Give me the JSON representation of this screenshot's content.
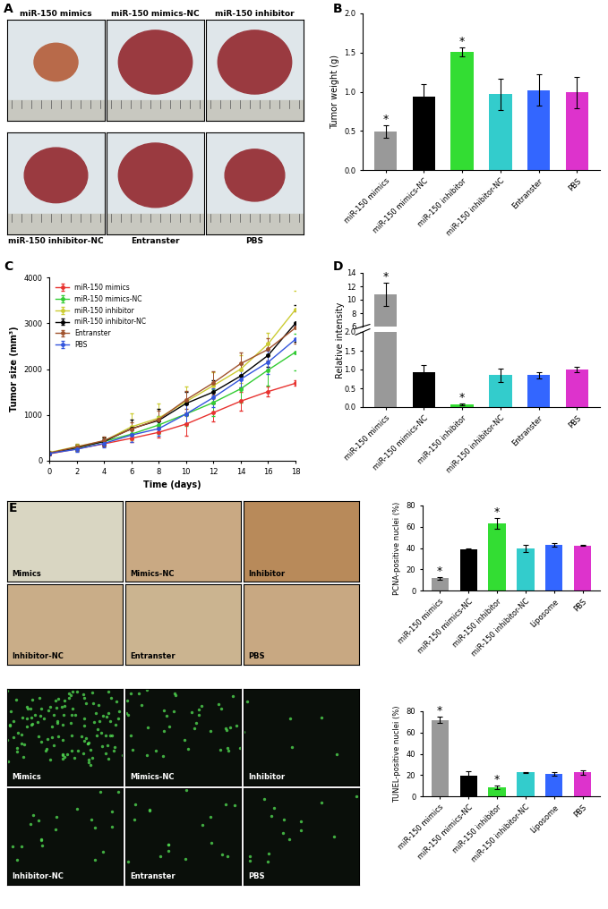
{
  "photos_A": {
    "panel": "A",
    "captions": [
      "miR-150 mimics",
      "miR-150 mimics-NC",
      "miR-150 inhibitor",
      "miR-150 inhibitor-NC",
      "Entranster",
      "PBS"
    ]
  },
  "images_E": {
    "panel": "E",
    "ihc_captions": [
      "Mimics",
      "Mimics-NC",
      "Inhibitor",
      "Inhibitor-NC",
      "Entranster",
      "PBS"
    ],
    "tunel_captions": [
      "Mimics",
      "Mimics-NC",
      "Inhibitor",
      "Inhibitor-NC",
      "Entranster",
      "PBS"
    ]
  },
  "chart_data": [
    {
      "panel": "B",
      "type": "bar",
      "y_label": "Tumor weight (g)",
      "categories": [
        "miR-150 mimics",
        "miR-150 mimics-NC",
        "miR-150 inhibitor",
        "miR-150 inhibitor-NC",
        "Entranster",
        "PBS"
      ],
      "values": [
        0.49,
        0.94,
        1.51,
        0.97,
        1.02,
        0.99
      ],
      "errors": [
        0.08,
        0.16,
        0.06,
        0.2,
        0.2,
        0.2
      ],
      "annotations": [
        "*",
        null,
        "*",
        null,
        null,
        null
      ],
      "colors": [
        "#999999",
        "#000000",
        "#33dd33",
        "#33cccc",
        "#3366ff",
        "#dd33cc"
      ],
      "ylim": [
        0,
        2.0
      ],
      "yticks": [
        {
          "value": 0,
          "label": "0.0"
        },
        {
          "value": 0.5,
          "label": "0.5"
        },
        {
          "value": 1.0,
          "label": "1.0"
        },
        {
          "value": 1.5,
          "label": "1.5"
        },
        {
          "value": 2.0,
          "label": "2.0"
        }
      ]
    },
    {
      "panel": "C",
      "type": "line",
      "x_label": "Time (days)",
      "y_label": "Tumor size (mm³)",
      "x": [
        0,
        2,
        4,
        6,
        8,
        10,
        12,
        14,
        16,
        18
      ],
      "xlim": [
        0,
        18
      ],
      "xticks": [
        0,
        2,
        4,
        6,
        8,
        10,
        12,
        14,
        16,
        18
      ],
      "ylim": [
        0,
        4000
      ],
      "yticks": [
        0,
        1000,
        2000,
        3000,
        4000
      ],
      "legend": "upper left",
      "marker": "o",
      "series": [
        {
          "name": "miR-150 mimics",
          "color": "#e8322f",
          "values": [
            150,
            260,
            370,
            490,
            620,
            800,
            1050,
            1300,
            1510,
            1690
          ],
          "errors": [
            30,
            50,
            60,
            80,
            120,
            250,
            200,
            200,
            100,
            60
          ]
        },
        {
          "name": "miR-150 mimics-NC",
          "color": "#33cc33",
          "values": [
            170,
            280,
            420,
            580,
            780,
            1020,
            1270,
            1570,
            1980,
            2370
          ],
          "errors": [
            30,
            60,
            80,
            120,
            200,
            250,
            300,
            300,
            350,
            400
          ]
        },
        {
          "name": "miR-150 inhibitor",
          "color": "#cccc33",
          "values": [
            180,
            310,
            430,
            740,
            930,
            1290,
            1640,
            2000,
            2550,
            3300
          ],
          "errors": [
            30,
            60,
            80,
            300,
            320,
            320,
            300,
            300,
            250,
            400
          ]
        },
        {
          "name": "miR-150 inhibitor-NC",
          "color": "#000000",
          "values": [
            160,
            290,
            420,
            700,
            880,
            1250,
            1500,
            1850,
            2300,
            3000
          ],
          "errors": [
            30,
            60,
            80,
            200,
            250,
            250,
            250,
            250,
            250,
            400
          ]
        },
        {
          "name": "Entranster",
          "color": "#a0522d",
          "values": [
            170,
            300,
            440,
            690,
            900,
            1330,
            1700,
            2120,
            2430,
            2900
          ],
          "errors": [
            30,
            60,
            80,
            150,
            200,
            200,
            250,
            250,
            250,
            350
          ]
        },
        {
          "name": "PBS",
          "color": "#3355dd",
          "values": [
            160,
            250,
            380,
            560,
            700,
            1020,
            1380,
            1780,
            2150,
            2650
          ],
          "errors": [
            30,
            60,
            80,
            150,
            150,
            200,
            200,
            200,
            250,
            300
          ]
        }
      ]
    },
    {
      "panel": "D",
      "type": "bar",
      "y_label": "Relative intensity",
      "categories": [
        "miR-150 mimics",
        "miR-150 mimics-NC",
        "miR-150 inhibitor",
        "miR-150 inhibitor-NC",
        "Entranster",
        "PBS"
      ],
      "values": [
        10.8,
        0.92,
        0.07,
        0.85,
        0.85,
        1.0
      ],
      "errors": [
        1.7,
        0.2,
        0.03,
        0.18,
        0.08,
        0.06
      ],
      "annotations": [
        "*",
        null,
        "*",
        null,
        null,
        null
      ],
      "colors": [
        "#999999",
        "#000000",
        "#33dd33",
        "#33cccc",
        "#3366ff",
        "#dd33cc"
      ],
      "axis_segments": [
        {
          "ylim": [
            0,
            2.0
          ],
          "yticks": [
            {
              "value": 0,
              "label": "0.0"
            },
            {
              "value": 0.5,
              "label": "0.5"
            },
            {
              "value": 1.0,
              "label": "1.0"
            },
            {
              "value": 1.5,
              "label": "1.5"
            },
            {
              "value": 2.0,
              "label": "2.0"
            }
          ]
        },
        {
          "ylim": [
            6,
            14
          ],
          "yticks": [
            6,
            8,
            10,
            12,
            14
          ]
        }
      ]
    },
    {
      "panel": "E",
      "type": "bar",
      "y_label": "PCNA-positive nuclei (%)",
      "categories": [
        "miR-150 mimics",
        "miR-150 mimics-NC",
        "miR-150 inhibitor",
        "miR-150 inhibitor-NC",
        "Liposome",
        "PBS"
      ],
      "values": [
        11.5,
        38.5,
        63,
        39.5,
        43,
        42.5
      ],
      "errors": [
        1.5,
        1.5,
        5,
        3.5,
        1.5,
        0.5
      ],
      "annotations": [
        "*",
        null,
        "*",
        null,
        null,
        null
      ],
      "colors": [
        "#999999",
        "#000000",
        "#33dd33",
        "#33cccc",
        "#3366ff",
        "#dd33cc"
      ],
      "ylim": [
        0,
        80
      ],
      "yticks": [
        0,
        20,
        40,
        60,
        80
      ]
    },
    {
      "panel": "E",
      "type": "bar",
      "y_label": "TUNEL-positive nuclei (%)",
      "categories": [
        "miR-150 mimics",
        "miR-150 mimics-NC",
        "miR-150 inhibitor",
        "miR-150 inhibitor-NC",
        "Liposome",
        "PBS"
      ],
      "values": [
        72,
        19.5,
        8.5,
        22.5,
        21,
        22.5
      ],
      "errors": [
        3,
        4.5,
        1.5,
        0.5,
        2,
        2
      ],
      "annotations": [
        "*",
        null,
        "*",
        null,
        null,
        null
      ],
      "colors": [
        "#999999",
        "#000000",
        "#33dd33",
        "#33cccc",
        "#3366ff",
        "#dd33cc"
      ],
      "ylim": [
        0,
        80
      ],
      "yticks": [
        0,
        20,
        40,
        60,
        80
      ]
    }
  ]
}
